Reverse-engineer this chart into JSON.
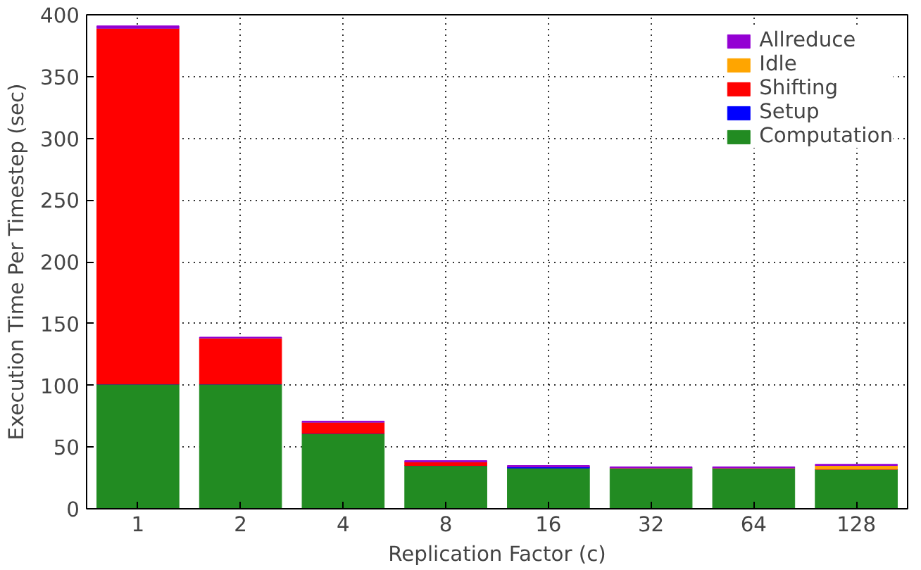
{
  "chart_data": {
    "type": "bar",
    "stacked": true,
    "xlabel": "Replication Factor (c)",
    "ylabel": "Execution Time Per Timestep (sec)",
    "categories": [
      "1",
      "2",
      "4",
      "8",
      "16",
      "32",
      "64",
      "128"
    ],
    "series": [
      {
        "name": "Computation",
        "color": "#228b22",
        "values": [
          101,
          101,
          61,
          35,
          33,
          33,
          33,
          32
        ]
      },
      {
        "name": "Setup",
        "color": "#0000ff",
        "values": [
          0,
          0,
          0,
          0,
          1,
          0,
          0,
          0
        ]
      },
      {
        "name": "Shifting",
        "color": "#ff0000",
        "values": [
          288,
          37,
          9,
          3,
          0,
          0,
          0,
          0
        ]
      },
      {
        "name": "Idle",
        "color": "#ffa500",
        "values": [
          0,
          0,
          0,
          0,
          0,
          0,
          0,
          3
        ]
      },
      {
        "name": "Allreduce",
        "color": "#9400d3",
        "values": [
          2,
          1,
          1,
          1,
          1,
          1,
          1,
          1
        ]
      }
    ],
    "ylim": [
      0,
      400
    ],
    "yticks": [
      0,
      50,
      100,
      150,
      200,
      250,
      300,
      350,
      400
    ],
    "grid": true,
    "legend": "top right"
  }
}
